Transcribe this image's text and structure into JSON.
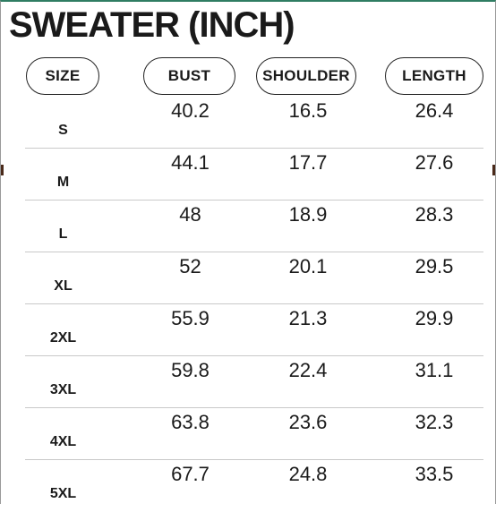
{
  "title": "SWEATER (INCH)",
  "headers": {
    "size": "SIZE",
    "bust": "BUST",
    "shoulder": "SHOULDER",
    "length": "LENGTH"
  },
  "rows": [
    {
      "size": "S",
      "bust": "40.2",
      "shoulder": "16.5",
      "length": "26.4"
    },
    {
      "size": "M",
      "bust": "44.1",
      "shoulder": "17.7",
      "length": "27.6"
    },
    {
      "size": "L",
      "bust": "48",
      "shoulder": "18.9",
      "length": "28.3"
    },
    {
      "size": "XL",
      "bust": "52",
      "shoulder": "20.1",
      "length": "29.5"
    },
    {
      "size": "2XL",
      "bust": "55.9",
      "shoulder": "21.3",
      "length": "29.9"
    },
    {
      "size": "3XL",
      "bust": "59.8",
      "shoulder": "22.4",
      "length": "31.1"
    },
    {
      "size": "4XL",
      "bust": "63.8",
      "shoulder": "23.6",
      "length": "32.3"
    },
    {
      "size": "5XL",
      "bust": "67.7",
      "shoulder": "24.8",
      "length": "33.5"
    }
  ]
}
